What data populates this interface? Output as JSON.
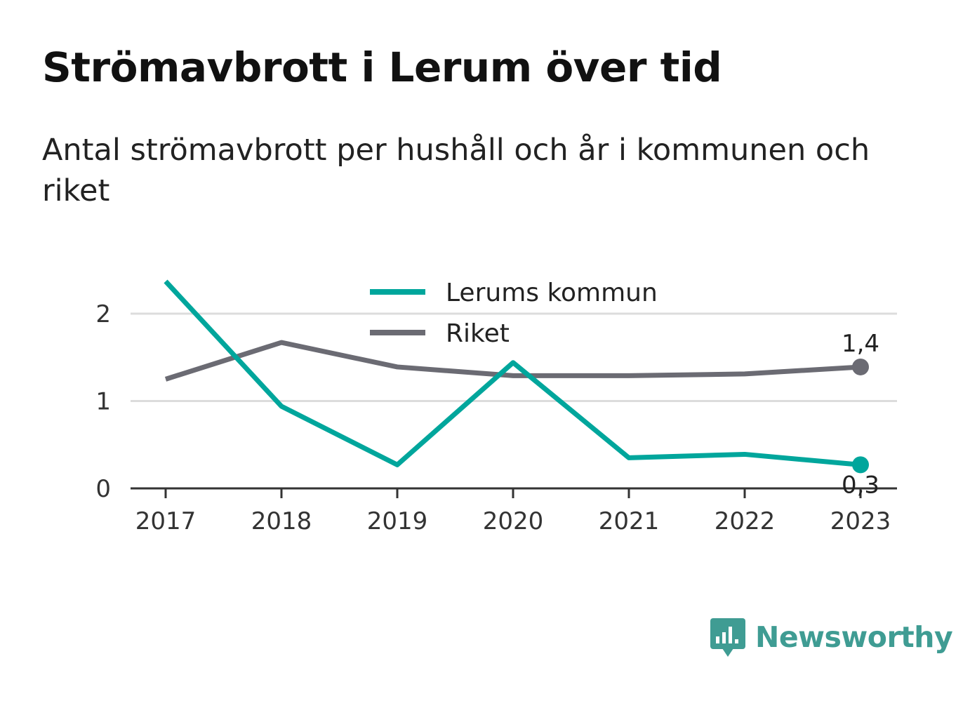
{
  "header": {
    "title": "Strömavbrott i Lerum över tid",
    "subtitle": "Antal strömavbrott per hushåll och år i kommunen och riket"
  },
  "chart_data": {
    "type": "line",
    "x": [
      "2017",
      "2018",
      "2019",
      "2020",
      "2021",
      "2022",
      "2023"
    ],
    "yticks": [
      "0",
      "1",
      "2"
    ],
    "ylim": [
      0,
      2.4
    ],
    "grid": true,
    "legend_position": "top-center",
    "series": [
      {
        "name": "Lerums kommun",
        "color": "#00a69c",
        "values": [
          2.37,
          0.94,
          0.27,
          1.44,
          0.35,
          0.39,
          0.27
        ],
        "end_label": "0,3"
      },
      {
        "name": "Riket",
        "color": "#6b6b73",
        "values": [
          1.25,
          1.67,
          1.39,
          1.29,
          1.29,
          1.31,
          1.39
        ],
        "end_label": "1,4"
      }
    ]
  },
  "branding": {
    "name": "Newsworthy",
    "color": "#3f9c93",
    "icon": "newsworthy-logo-icon"
  }
}
